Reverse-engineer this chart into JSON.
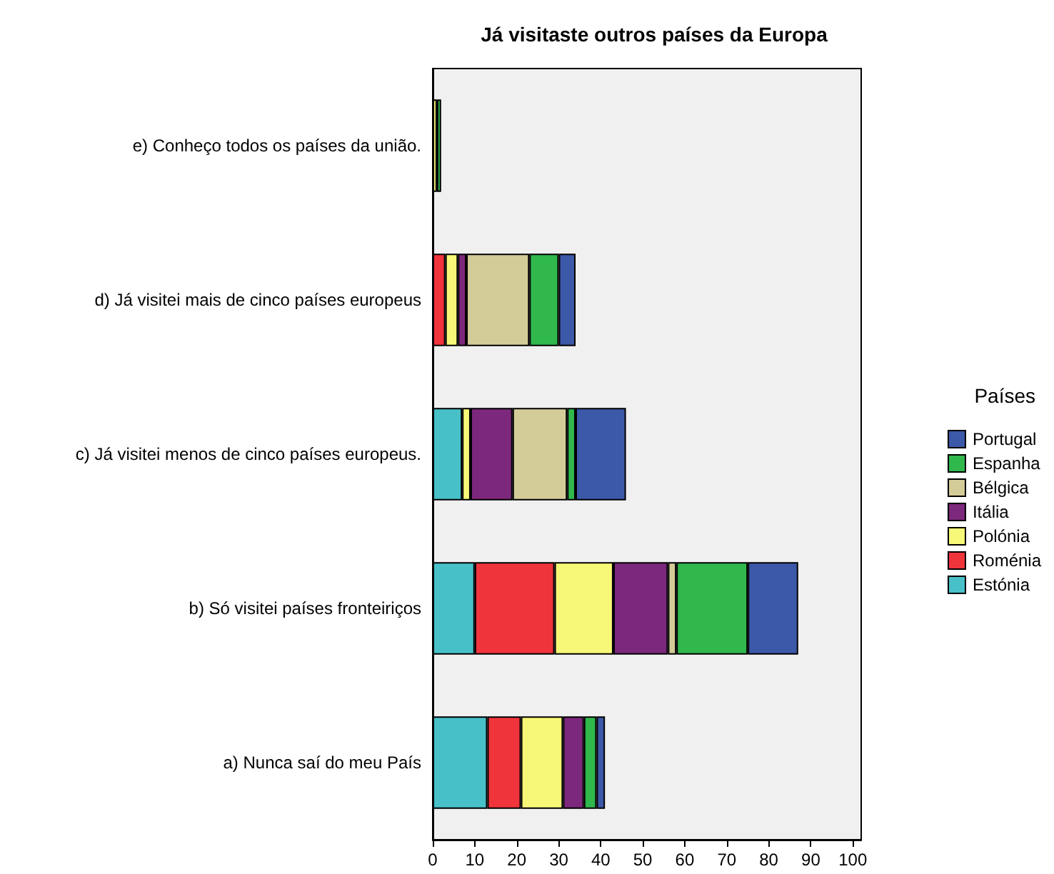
{
  "chart_data": {
    "type": "bar",
    "orientation": "horizontal",
    "stacked": true,
    "title": "Já visitaste outros países da Europa",
    "legend_title": "Países",
    "legend": "right",
    "grid": false,
    "categories": [
      "e) Conheço todos os países da união.",
      "d) Já visitei mais de cinco países europeus",
      "c) Já visitei menos de cinco países europeus.",
      "b) Só visitei países fronteiriços",
      "a) Nunca saí do meu País"
    ],
    "xlim": [
      0,
      102
    ],
    "xticks": [
      0,
      10,
      20,
      30,
      40,
      50,
      60,
      70,
      80,
      90,
      100
    ],
    "series": [
      {
        "name": "Estónia",
        "color": "#48c0c8",
        "values": [
          0,
          0,
          7,
          10,
          13
        ]
      },
      {
        "name": "Roménia",
        "color": "#f0343c",
        "values": [
          0,
          3,
          0,
          19,
          8
        ]
      },
      {
        "name": "Polónia",
        "color": "#f8f878",
        "values": [
          1,
          3,
          2,
          14,
          10
        ]
      },
      {
        "name": "Itália",
        "color": "#7c287c",
        "values": [
          0,
          2,
          10,
          13,
          5
        ]
      },
      {
        "name": "Bélgica",
        "color": "#d4cc98",
        "values": [
          0,
          15,
          13,
          2,
          0
        ]
      },
      {
        "name": "Espanha",
        "color": "#30b84c",
        "values": [
          1,
          7,
          2,
          17,
          3
        ]
      },
      {
        "name": "Portugal",
        "color": "#3c58a8",
        "values": [
          0,
          4,
          12,
          12,
          2
        ]
      }
    ]
  }
}
